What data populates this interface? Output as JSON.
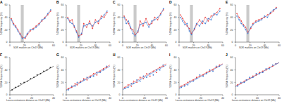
{
  "chart_data": [
    {
      "type": "line",
      "title": "A",
      "x_label": "SDR markers on Chr19 (Mb)",
      "y_label": "SDNA frequency (%)",
      "x": [
        2,
        5,
        8,
        11,
        14,
        17,
        21,
        24,
        28,
        32,
        36,
        40,
        44,
        48,
        52,
        56
      ],
      "series": [
        {
          "color": "#e8403f",
          "values": [
            38,
            30,
            26,
            20,
            14,
            8,
            6,
            12,
            18,
            22,
            26,
            30,
            34,
            40,
            44,
            50
          ]
        },
        {
          "color": "#3a7bd5",
          "values": [
            36,
            28,
            24,
            18,
            12,
            6,
            8,
            14,
            20,
            20,
            24,
            28,
            36,
            38,
            46,
            52
          ]
        }
      ],
      "shaded_range": [
        15,
        19
      ],
      "xlim": [
        0,
        60
      ],
      "xticks": [
        0,
        20,
        40,
        60
      ],
      "ylim": [
        0,
        60
      ],
      "yticks": [
        0,
        20,
        40,
        60
      ]
    },
    {
      "type": "line",
      "title": "B",
      "x_label": "SDR markers on Chr19 (Mb)",
      "y_label": "SDNA frequency (%)",
      "x": [
        2,
        5,
        8,
        11,
        14,
        17,
        21,
        24,
        28,
        32,
        36,
        40,
        44,
        48,
        52,
        56
      ],
      "series": [
        {
          "color": "#e8403f",
          "values": [
            40,
            34,
            36,
            24,
            18,
            10,
            12,
            30,
            24,
            34,
            22,
            36,
            30,
            42,
            40,
            48
          ]
        },
        {
          "color": "#3a7bd5",
          "values": [
            38,
            32,
            30,
            26,
            16,
            8,
            14,
            26,
            28,
            30,
            26,
            32,
            34,
            38,
            44,
            50
          ]
        }
      ],
      "shaded_range": [
        15,
        19
      ],
      "xlim": [
        0,
        60
      ],
      "xticks": [
        0,
        20,
        40,
        60
      ],
      "ylim": [
        0,
        60
      ],
      "yticks": [
        0,
        20,
        40,
        60
      ]
    },
    {
      "type": "line",
      "title": "C",
      "x_label": "SDR markers on Chr19 (Mb)",
      "y_label": "SDNA frequency (%)",
      "x": [
        2,
        5,
        8,
        11,
        14,
        17,
        21,
        24,
        28,
        32,
        36,
        40,
        44,
        48,
        52,
        56
      ],
      "series": [
        {
          "color": "#e8403f",
          "values": [
            42,
            36,
            30,
            22,
            20,
            12,
            16,
            34,
            26,
            38,
            28,
            30,
            40,
            36,
            46,
            52
          ]
        },
        {
          "color": "#3a7bd5",
          "values": [
            40,
            30,
            34,
            24,
            14,
            10,
            18,
            28,
            30,
            32,
            24,
            34,
            36,
            40,
            44,
            54
          ]
        }
      ],
      "shaded_range": [
        15,
        19
      ],
      "xlim": [
        0,
        60
      ],
      "xticks": [
        0,
        20,
        40,
        60
      ],
      "ylim": [
        0,
        60
      ],
      "yticks": [
        0,
        20,
        40,
        60
      ]
    },
    {
      "type": "line",
      "title": "D",
      "x_label": "SDR markers on Chr19 (Mb)",
      "y_label": "SDNA frequency (%)",
      "x": [
        2,
        5,
        8,
        11,
        14,
        17,
        21,
        24,
        28,
        32,
        36,
        40,
        44,
        48,
        52,
        56
      ],
      "series": [
        {
          "color": "#e8403f",
          "values": [
            44,
            38,
            32,
            26,
            22,
            14,
            20,
            28,
            36,
            30,
            40,
            34,
            42,
            44,
            48,
            54
          ]
        },
        {
          "color": "#3a7bd5",
          "values": [
            40,
            34,
            28,
            30,
            18,
            12,
            22,
            30,
            26,
            34,
            30,
            38,
            36,
            46,
            44,
            50
          ]
        }
      ],
      "shaded_range": [
        15,
        19
      ],
      "xlim": [
        0,
        60
      ],
      "xticks": [
        0,
        20,
        40,
        60
      ],
      "ylim": [
        0,
        60
      ],
      "yticks": [
        0,
        20,
        40,
        60
      ]
    },
    {
      "type": "line",
      "title": "E",
      "x_label": "SDR markers on Chr19 (Mb)",
      "y_label": "SDNA frequency (%)",
      "x": [
        2,
        5,
        8,
        11,
        14,
        17,
        21,
        24,
        28,
        32,
        36,
        40,
        44,
        48,
        52,
        56
      ],
      "series": [
        {
          "color": "#e8403f",
          "values": [
            46,
            40,
            34,
            28,
            24,
            16,
            22,
            30,
            34,
            36,
            38,
            40,
            44,
            46,
            50,
            56
          ]
        },
        {
          "color": "#3a7bd5",
          "values": [
            42,
            36,
            30,
            26,
            20,
            14,
            24,
            28,
            32,
            34,
            36,
            42,
            40,
            48,
            52,
            54
          ]
        }
      ],
      "shaded_range": [
        15,
        19
      ],
      "xlim": [
        0,
        60
      ],
      "xticks": [
        0,
        20,
        40,
        60
      ],
      "ylim": [
        0,
        60
      ],
      "yticks": [
        0,
        20,
        40,
        60
      ]
    },
    {
      "type": "scatter",
      "title": "F",
      "x_label": "Locus-centromere distance on Chr19 (Mb)",
      "y_label": "SDNA frequency (%)",
      "x": [
        2,
        5,
        8,
        10,
        13,
        16,
        19,
        22,
        25,
        28,
        31,
        34,
        37
      ],
      "series": [
        {
          "color": "#222222",
          "values": [
            8,
            12,
            14,
            18,
            20,
            22,
            26,
            28,
            32,
            34,
            38,
            40,
            44
          ],
          "fit_line": {
            "x": [
              0,
              40
            ],
            "y": [
              6,
              46
            ]
          }
        }
      ],
      "xlim": [
        0,
        40
      ],
      "xticks": [
        0,
        20,
        40
      ],
      "ylim": [
        0,
        60
      ],
      "yticks": [
        0,
        20,
        40,
        60
      ]
    },
    {
      "type": "scatter",
      "title": "G",
      "x_label": "Locus-centromere distance on Chr19 (Mb)",
      "y_label": "SDNA frequency (%)",
      "x": [
        2,
        5,
        8,
        10,
        13,
        16,
        19,
        22,
        25,
        28,
        31,
        34,
        37
      ],
      "series": [
        {
          "color": "#e8403f",
          "values": [
            10,
            12,
            18,
            16,
            22,
            26,
            24,
            30,
            34,
            32,
            38,
            42,
            44
          ],
          "fit_line": {
            "x": [
              0,
              40
            ],
            "y": [
              8,
              48
            ]
          }
        },
        {
          "color": "#3a7bd5",
          "values": [
            8,
            14,
            14,
            20,
            20,
            24,
            28,
            28,
            30,
            36,
            36,
            40,
            46
          ],
          "fit_line": {
            "x": [
              0,
              40
            ],
            "y": [
              7,
              46
            ]
          }
        }
      ],
      "xlim": [
        0,
        40
      ],
      "xticks": [
        0,
        20,
        40
      ],
      "ylim": [
        0,
        60
      ],
      "yticks": [
        0,
        20,
        40,
        60
      ]
    },
    {
      "type": "scatter",
      "title": "H",
      "x_label": "Locus-centromere distance on Chr19 (Mb)",
      "y_label": "SDNA frequency (%)",
      "x": [
        2,
        5,
        8,
        10,
        13,
        16,
        19,
        22,
        25,
        28,
        31,
        34,
        37
      ],
      "series": [
        {
          "color": "#e8403f",
          "values": [
            12,
            16,
            14,
            22,
            20,
            28,
            26,
            34,
            30,
            38,
            36,
            44,
            46
          ],
          "fit_line": {
            "x": [
              0,
              40
            ],
            "y": [
              10,
              50
            ]
          }
        },
        {
          "color": "#3a7bd5",
          "values": [
            10,
            12,
            18,
            18,
            24,
            22,
            30,
            28,
            34,
            32,
            40,
            40,
            48
          ],
          "fit_line": {
            "x": [
              0,
              40
            ],
            "y": [
              8,
              48
            ]
          }
        }
      ],
      "xlim": [
        0,
        40
      ],
      "xticks": [
        0,
        20,
        40
      ],
      "ylim": [
        0,
        60
      ],
      "yticks": [
        0,
        20,
        40,
        60
      ]
    },
    {
      "type": "scatter",
      "title": "I",
      "x_label": "Locus-centromere distance on Chr19 (Mb)",
      "y_label": "SDNA frequency (%)",
      "x": [
        2,
        5,
        8,
        10,
        13,
        16,
        19,
        22,
        25,
        28,
        31,
        34,
        37
      ],
      "series": [
        {
          "color": "#e8403f",
          "values": [
            14,
            16,
            20,
            22,
            24,
            28,
            30,
            32,
            36,
            38,
            40,
            44,
            48
          ],
          "fit_line": {
            "x": [
              0,
              40
            ],
            "y": [
              12,
              50
            ]
          }
        },
        {
          "color": "#3a7bd5",
          "values": [
            12,
            14,
            16,
            22,
            22,
            26,
            32,
            30,
            34,
            40,
            38,
            46,
            46
          ],
          "fit_line": {
            "x": [
              0,
              40
            ],
            "y": [
              10,
              49
            ]
          }
        }
      ],
      "xlim": [
        0,
        40
      ],
      "xticks": [
        0,
        20,
        40
      ],
      "ylim": [
        0,
        60
      ],
      "yticks": [
        0,
        20,
        40,
        60
      ]
    },
    {
      "type": "scatter",
      "title": "J",
      "x_label": "Locus-centromere distance on Chr19 (Mb)",
      "y_label": "SDNA frequency (%)",
      "x": [
        2,
        5,
        8,
        10,
        13,
        16,
        19,
        22,
        25,
        28,
        31,
        34,
        37
      ],
      "series": [
        {
          "color": "#e8403f",
          "values": [
            16,
            18,
            22,
            24,
            26,
            30,
            32,
            36,
            38,
            40,
            44,
            46,
            50
          ],
          "fit_line": {
            "x": [
              0,
              40
            ],
            "y": [
              14,
              52
            ]
          }
        },
        {
          "color": "#3a7bd5",
          "values": [
            14,
            20,
            20,
            24,
            28,
            28,
            34,
            34,
            36,
            42,
            42,
            48,
            50
          ],
          "fit_line": {
            "x": [
              0,
              40
            ],
            "y": [
              13,
              52
            ]
          }
        }
      ],
      "xlim": [
        0,
        40
      ],
      "xticks": [
        0,
        20,
        40
      ],
      "ylim": [
        0,
        60
      ],
      "yticks": [
        0,
        20,
        40,
        60
      ]
    }
  ]
}
